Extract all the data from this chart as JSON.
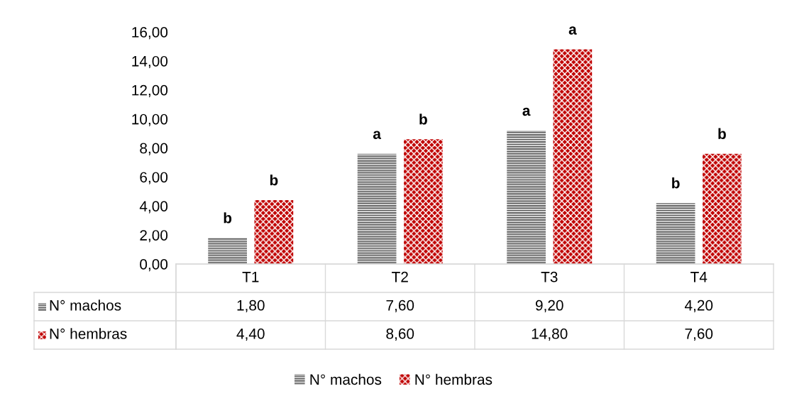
{
  "chart_data": {
    "type": "bar",
    "categories": [
      "T1",
      "T2",
      "T3",
      "T4"
    ],
    "series": [
      {
        "name": "N° machos",
        "color": "#595959",
        "values": [
          1.8,
          7.6,
          9.2,
          4.2
        ],
        "value_labels": [
          "1,80",
          "7,60",
          "9,20",
          "4,20"
        ]
      },
      {
        "name": "N° hembras",
        "color": "#c00000",
        "values": [
          4.4,
          8.6,
          14.8,
          7.6
        ],
        "value_labels": [
          "4,40",
          "8,60",
          "14,80",
          "7,60"
        ]
      }
    ],
    "ylim": [
      0,
      16
    ],
    "yticks": [
      {
        "value": 0,
        "label": "0,00"
      },
      {
        "value": 2,
        "label": "2,00"
      },
      {
        "value": 4,
        "label": "4,00"
      },
      {
        "value": 6,
        "label": "6,00"
      },
      {
        "value": 8,
        "label": "8,00"
      },
      {
        "value": 10,
        "label": "10,00"
      },
      {
        "value": 12,
        "label": "12,00"
      },
      {
        "value": 14,
        "label": "14,00"
      },
      {
        "value": 16,
        "label": "16,00"
      }
    ],
    "annotations": [
      "b",
      "b",
      "a",
      "b",
      "a",
      "a",
      "b",
      "b"
    ],
    "data_labels": true,
    "grid": false,
    "legend": "bottom"
  }
}
